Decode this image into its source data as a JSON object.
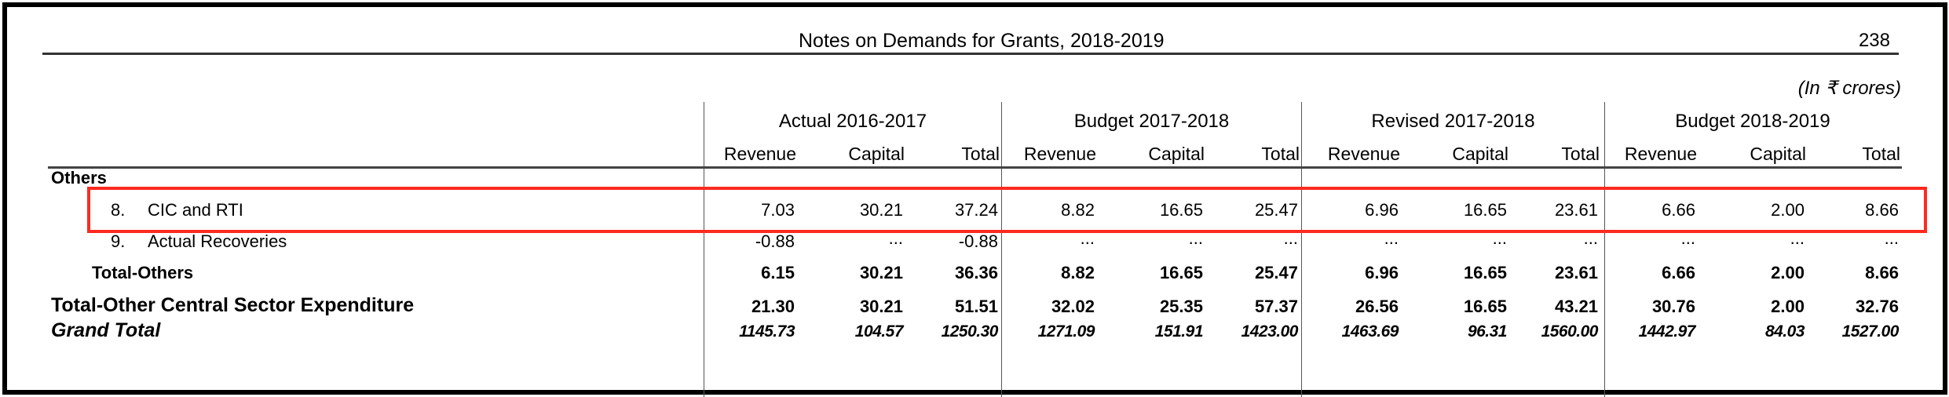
{
  "header": {
    "title": "Notes on Demands for Grants, 2018-2019",
    "page_number": "238"
  },
  "units": "(In ₹ crores)",
  "column_groups": [
    "Actual 2016-2017",
    "Budget 2017-2018",
    "Revised 2017-2018",
    "Budget 2018-2019"
  ],
  "sub_columns": [
    "Revenue",
    "Capital",
    "Total"
  ],
  "section_label": "Others",
  "highlight_color": "#ff2a1f",
  "rows": [
    {
      "num": "8.",
      "label": "CIC and RTI",
      "style": "normal",
      "highlighted": true,
      "values": [
        "7.03",
        "30.21",
        "37.24",
        "8.82",
        "16.65",
        "25.47",
        "6.96",
        "16.65",
        "23.61",
        "6.66",
        "2.00",
        "8.66"
      ]
    },
    {
      "num": "9.",
      "label": "Actual Recoveries",
      "style": "normal",
      "highlighted": false,
      "values": [
        "-0.88",
        "...",
        "-0.88",
        "...",
        "...",
        "...",
        "...",
        "...",
        "...",
        "...",
        "...",
        "..."
      ]
    },
    {
      "num": "",
      "label": "Total-Others",
      "style": "bold",
      "highlighted": false,
      "values": [
        "6.15",
        "30.21",
        "36.36",
        "8.82",
        "16.65",
        "25.47",
        "6.96",
        "16.65",
        "23.61",
        "6.66",
        "2.00",
        "8.66"
      ]
    },
    {
      "num": "",
      "label": "Total-Other Central Sector Expenditure",
      "style": "bold",
      "highlighted": false,
      "values": [
        "21.30",
        "30.21",
        "51.51",
        "32.02",
        "25.35",
        "57.37",
        "26.56",
        "16.65",
        "43.21",
        "30.76",
        "2.00",
        "32.76"
      ]
    },
    {
      "num": "",
      "label": "Grand Total",
      "style": "bold-italic",
      "highlighted": false,
      "values": [
        "1145.73",
        "104.57",
        "1250.30",
        "1271.09",
        "151.91",
        "1423.00",
        "1463.69",
        "96.31",
        "1560.00",
        "1442.97",
        "84.03",
        "1527.00"
      ]
    }
  ]
}
